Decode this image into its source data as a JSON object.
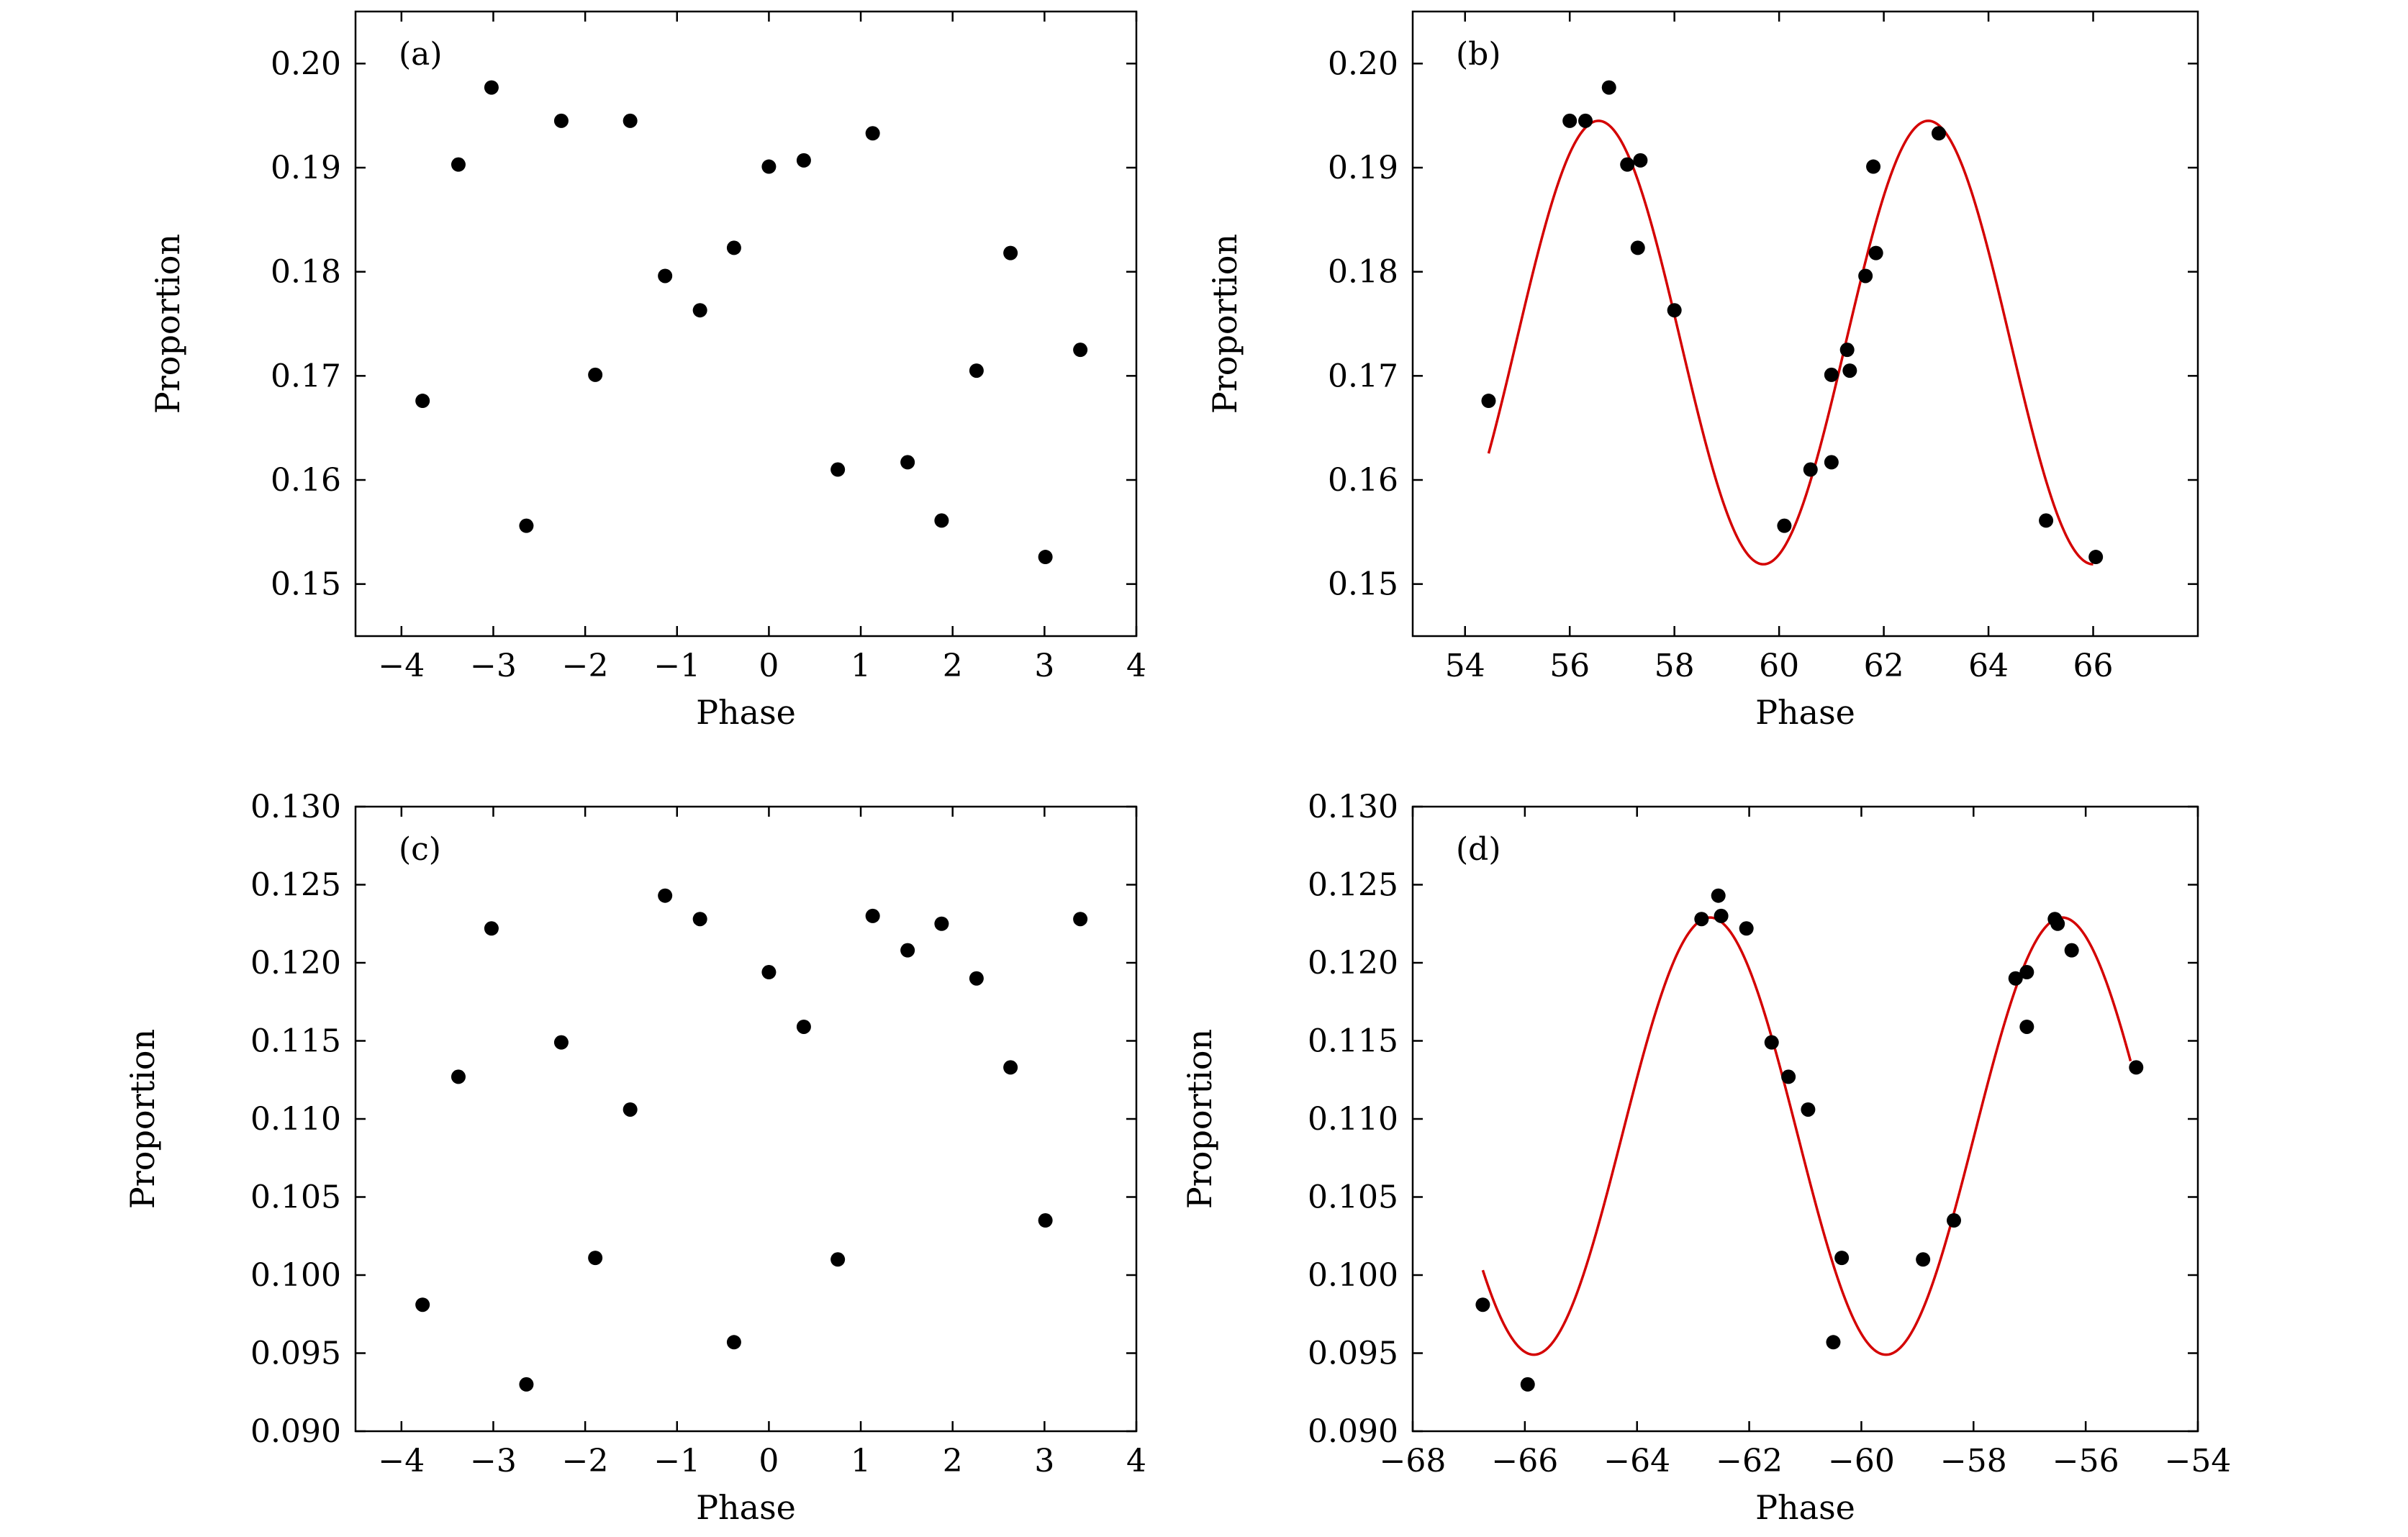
{
  "figure": {
    "colors": {
      "points": "#000000",
      "fit": "#d40000",
      "axes": "#000000",
      "background": "#ffffff"
    }
  },
  "chart_data": [
    {
      "id": "a",
      "type": "scatter",
      "panel_label": "(a)",
      "xlabel": "Phase",
      "ylabel": "Proportion",
      "xlim": [
        -4.5,
        4
      ],
      "ylim": [
        0.145,
        0.205
      ],
      "xticks": [
        -4,
        -3,
        -2,
        -1,
        0,
        1,
        2,
        3,
        4
      ],
      "xtick_labels": [
        "−4",
        "−3",
        "−2",
        "−1",
        "0",
        "1",
        "2",
        "3",
        "4"
      ],
      "yticks": [
        0.15,
        0.16,
        0.17,
        0.18,
        0.19,
        0.2
      ],
      "ytick_labels": [
        "0.15",
        "0.16",
        "0.17",
        "0.18",
        "0.19",
        "0.20"
      ],
      "points": [
        [
          -3.77,
          0.1676
        ],
        [
          -3.38,
          0.1903
        ],
        [
          -3.02,
          0.1977
        ],
        [
          -2.64,
          0.1556
        ],
        [
          -2.26,
          0.1945
        ],
        [
          -1.89,
          0.1701
        ],
        [
          -1.51,
          0.1945
        ],
        [
          -1.13,
          0.1796
        ],
        [
          -0.75,
          0.1763
        ],
        [
          -0.38,
          0.1823
        ],
        [
          0.0,
          0.1901
        ],
        [
          0.38,
          0.1907
        ],
        [
          0.75,
          0.161
        ],
        [
          1.13,
          0.1933
        ],
        [
          1.51,
          0.1617
        ],
        [
          1.88,
          0.1561
        ],
        [
          2.26,
          0.1705
        ],
        [
          2.63,
          0.1818
        ],
        [
          3.01,
          0.1526
        ],
        [
          3.39,
          0.1725
        ]
      ]
    },
    {
      "id": "b",
      "type": "scatter",
      "panel_label": "(b)",
      "xlabel": "Phase",
      "ylabel": "Proportion",
      "xlim": [
        53,
        68
      ],
      "ylim": [
        0.145,
        0.205
      ],
      "xticks": [
        54,
        56,
        58,
        60,
        62,
        64,
        66
      ],
      "xtick_labels": [
        "54",
        "56",
        "58",
        "60",
        "62",
        "64",
        "66"
      ],
      "yticks": [
        0.15,
        0.16,
        0.17,
        0.18,
        0.19,
        0.2
      ],
      "ytick_labels": [
        "0.15",
        "0.16",
        "0.17",
        "0.18",
        "0.19",
        "0.20"
      ],
      "points": [
        [
          54.45,
          0.1676
        ],
        [
          56.0,
          0.1945
        ],
        [
          56.3,
          0.1945
        ],
        [
          56.75,
          0.1977
        ],
        [
          57.1,
          0.1903
        ],
        [
          57.35,
          0.1907
        ],
        [
          57.3,
          0.1823
        ],
        [
          58.0,
          0.1763
        ],
        [
          60.1,
          0.1556
        ],
        [
          60.6,
          0.161
        ],
        [
          61.0,
          0.1617
        ],
        [
          61.0,
          0.1701
        ],
        [
          61.3,
          0.1725
        ],
        [
          61.35,
          0.1705
        ],
        [
          61.65,
          0.1796
        ],
        [
          61.85,
          0.1818
        ],
        [
          61.8,
          0.1901
        ],
        [
          63.05,
          0.1933
        ],
        [
          65.1,
          0.1561
        ],
        [
          66.05,
          0.1526
        ]
      ],
      "fit": {
        "type": "sine",
        "offset": 0.1732,
        "amplitude": 0.0213,
        "period": 6.3,
        "peak_x": 56.55,
        "x_range": [
          54.45,
          66.0
        ]
      }
    },
    {
      "id": "c",
      "type": "scatter",
      "panel_label": "(c)",
      "xlabel": "Phase",
      "ylabel": "Proportion",
      "xlim": [
        -4.5,
        4
      ],
      "ylim": [
        0.09,
        0.13
      ],
      "xticks": [
        -4,
        -3,
        -2,
        -1,
        0,
        1,
        2,
        3,
        4
      ],
      "xtick_labels": [
        "−4",
        "−3",
        "−2",
        "−1",
        "0",
        "1",
        "2",
        "3",
        "4"
      ],
      "yticks": [
        0.09,
        0.095,
        0.1,
        0.105,
        0.11,
        0.115,
        0.12,
        0.125,
        0.13
      ],
      "ytick_labels": [
        "0.090",
        "0.095",
        "0.100",
        "0.105",
        "0.110",
        "0.115",
        "0.120",
        "0.125",
        "0.130"
      ],
      "points": [
        [
          -3.77,
          0.0981
        ],
        [
          -3.38,
          0.1127
        ],
        [
          -3.02,
          0.1222
        ],
        [
          -2.64,
          0.093
        ],
        [
          -2.26,
          0.1149
        ],
        [
          -1.89,
          0.1011
        ],
        [
          -1.51,
          0.1106
        ],
        [
          -1.13,
          0.1243
        ],
        [
          -0.75,
          0.1228
        ],
        [
          -0.38,
          0.0957
        ],
        [
          0.0,
          0.1194
        ],
        [
          0.38,
          0.1159
        ],
        [
          0.75,
          0.101
        ],
        [
          1.13,
          0.123
        ],
        [
          1.51,
          0.1208
        ],
        [
          1.88,
          0.1225
        ],
        [
          2.26,
          0.119
        ],
        [
          2.63,
          0.1133
        ],
        [
          3.01,
          0.1035
        ],
        [
          3.39,
          0.1228
        ]
      ]
    },
    {
      "id": "d",
      "type": "scatter",
      "panel_label": "(d)",
      "xlabel": "Phase",
      "ylabel": "Proportion",
      "xlim": [
        -68,
        -54
      ],
      "ylim": [
        0.09,
        0.13
      ],
      "xticks": [
        -68,
        -66,
        -64,
        -62,
        -60,
        -58,
        -56,
        -54
      ],
      "xtick_labels": [
        "−68",
        "−66",
        "−64",
        "−62",
        "−60",
        "−58",
        "−56",
        "−54"
      ],
      "yticks": [
        0.09,
        0.095,
        0.1,
        0.105,
        0.11,
        0.115,
        0.12,
        0.125,
        0.13
      ],
      "ytick_labels": [
        "0.090",
        "0.095",
        "0.100",
        "0.105",
        "0.110",
        "0.115",
        "0.120",
        "0.125",
        "0.130"
      ],
      "points": [
        [
          -66.75,
          0.0981
        ],
        [
          -65.95,
          0.093
        ],
        [
          -62.85,
          0.1228
        ],
        [
          -62.55,
          0.1243
        ],
        [
          -62.5,
          0.123
        ],
        [
          -62.05,
          0.1222
        ],
        [
          -61.6,
          0.1149
        ],
        [
          -61.3,
          0.1127
        ],
        [
          -60.95,
          0.1106
        ],
        [
          -60.5,
          0.0957
        ],
        [
          -60.35,
          0.1011
        ],
        [
          -58.9,
          0.101
        ],
        [
          -58.35,
          0.1035
        ],
        [
          -57.25,
          0.119
        ],
        [
          -57.05,
          0.1194
        ],
        [
          -57.05,
          0.1159
        ],
        [
          -56.55,
          0.1228
        ],
        [
          -56.5,
          0.1225
        ],
        [
          -56.25,
          0.1208
        ],
        [
          -55.1,
          0.1133
        ]
      ],
      "fit": {
        "type": "sine",
        "offset": 0.1089,
        "amplitude": 0.014,
        "period": 6.28,
        "peak_x": -62.7,
        "x_range": [
          -66.75,
          -55.2
        ]
      }
    }
  ]
}
